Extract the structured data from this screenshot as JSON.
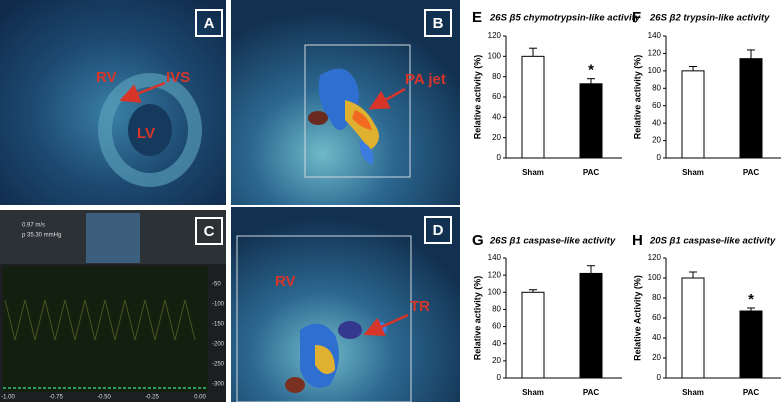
{
  "chart_data": [
    {
      "type": "bar",
      "panel_label": "E",
      "title": "26S β5 chymotrypsin-like activity",
      "ylabel": "Relative activity (%)",
      "categories": [
        "Sham",
        "PAC"
      ],
      "values": [
        100,
        73
      ],
      "errors": [
        8,
        5
      ],
      "colors": [
        "#ffffff",
        "#000000"
      ],
      "ylim": [
        0,
        120
      ],
      "yticks": [
        0,
        20,
        40,
        60,
        80,
        100,
        120
      ],
      "significance_labels": [
        null,
        "*"
      ]
    },
    {
      "type": "bar",
      "panel_label": "F",
      "title": "26S β2 trypsin-like activity",
      "ylabel": "Relative activity (%)",
      "categories": [
        "Sham",
        "PAC"
      ],
      "values": [
        100,
        114
      ],
      "errors": [
        5,
        10
      ],
      "colors": [
        "#ffffff",
        "#000000"
      ],
      "ylim": [
        0,
        140
      ],
      "yticks": [
        0,
        20,
        40,
        60,
        80,
        100,
        120,
        140
      ],
      "significance_labels": [
        null,
        null
      ]
    },
    {
      "type": "bar",
      "panel_label": "G",
      "title": "26S β1 caspase-like activity",
      "ylabel": "Relative activity (%)",
      "categories": [
        "Sham",
        "PAC"
      ],
      "values": [
        100,
        122
      ],
      "errors": [
        3,
        9
      ],
      "colors": [
        "#ffffff",
        "#000000"
      ],
      "ylim": [
        0,
        140
      ],
      "yticks": [
        0,
        20,
        40,
        60,
        80,
        100,
        120,
        140
      ],
      "significance_labels": [
        null,
        null
      ]
    },
    {
      "type": "bar",
      "panel_label": "H",
      "title": "20S β1 caspase-like activity",
      "ylabel": "Relative Activity (%)",
      "categories": [
        "Sham",
        "PAC"
      ],
      "values": [
        100,
        67
      ],
      "errors": [
        6,
        3
      ],
      "colors": [
        "#ffffff",
        "#000000"
      ],
      "ylim": [
        0,
        120
      ],
      "yticks": [
        0,
        20,
        40,
        60,
        80,
        100,
        120
      ],
      "significance_labels": [
        null,
        "*"
      ]
    }
  ],
  "images": [
    {
      "label": "A",
      "annotations": [
        "RV",
        "IVS",
        "LV"
      ]
    },
    {
      "label": "B",
      "annotations": [
        "PA jet"
      ]
    },
    {
      "label": "C",
      "readouts": [
        "0.97 m/s",
        "p 35.30 mmHg"
      ],
      "xticks": [
        "-1.00",
        "-0.75",
        "-0.50",
        "-0.25",
        "0.00"
      ],
      "yticks": [
        "-50",
        "-100",
        "-150",
        "-200",
        "-250",
        "-300"
      ]
    },
    {
      "label": "D",
      "annotations": [
        "RV",
        "TR"
      ]
    }
  ]
}
